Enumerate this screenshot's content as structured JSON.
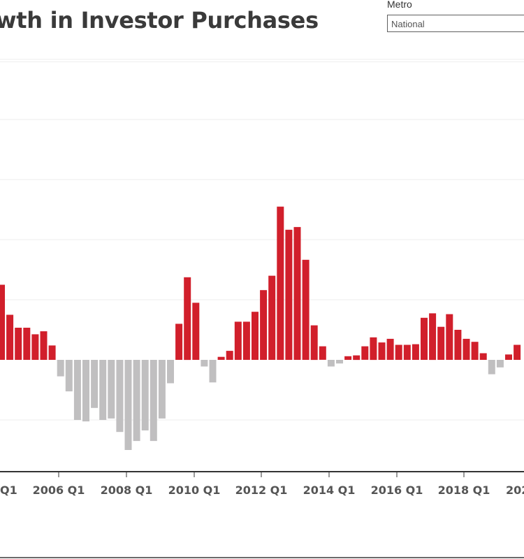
{
  "header": {
    "title": "wth in Investor Purchases",
    "filter_label": "Metro",
    "filter_value": "National"
  },
  "colors": {
    "positive": "#d11f2b",
    "negative": "#c0bfc0",
    "grid": "#ececec",
    "axis": "#333333",
    "tick_text": "#555555"
  },
  "chart_data": {
    "type": "bar",
    "title": "wth in Investor Purchases",
    "xlabel": "",
    "ylabel": "",
    "ylim": [
      -0.4,
      1.0
    ],
    "grid": true,
    "tick_labels": [
      "Q1",
      "2006 Q1",
      "2008 Q1",
      "2010 Q1",
      "2012 Q1",
      "2014 Q1",
      "2016 Q1",
      "2018 Q1",
      "202"
    ],
    "values": [
      0.25,
      0.15,
      0.107,
      0.107,
      0.085,
      0.095,
      0.048,
      -0.055,
      -0.105,
      -0.2,
      -0.205,
      -0.16,
      -0.2,
      -0.195,
      -0.24,
      -0.3,
      -0.27,
      -0.235,
      -0.27,
      -0.195,
      -0.078,
      0.12,
      0.275,
      0.19,
      -0.022,
      -0.075,
      0.01,
      0.03,
      0.127,
      0.127,
      0.16,
      0.232,
      0.28,
      0.51,
      0.433,
      0.442,
      0.333,
      0.115,
      0.045,
      -0.022,
      -0.012,
      0.012,
      0.015,
      0.045,
      0.075,
      0.058,
      0.07,
      0.05,
      0.05,
      0.052,
      0.14,
      0.155,
      0.11,
      0.152,
      0.1,
      0.07,
      0.06,
      0.022,
      -0.048,
      -0.025,
      0.018,
      0.05
    ]
  }
}
